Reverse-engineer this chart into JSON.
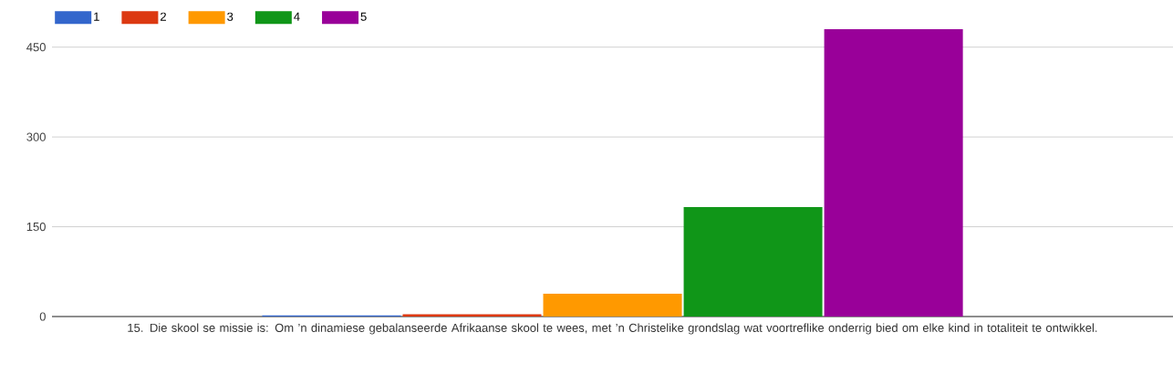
{
  "chart_data": {
    "type": "bar",
    "xlabel": "15. Die skool se missie is: Om ’n dinamiese gebalanseerde Afrikaanse skool te wees, met ’n Christelike grondslag wat voortreflike onderrig bied om elke kind in totaliteit te ontwikkel.",
    "categories": [
      null
    ],
    "series": [
      {
        "name": "1",
        "color": "#3366cc",
        "values": [
          2
        ]
      },
      {
        "name": "2",
        "color": "#dc3912",
        "values": [
          4
        ]
      },
      {
        "name": "3",
        "color": "#ff9900",
        "values": [
          38
        ]
      },
      {
        "name": "4",
        "color": "#109618",
        "values": [
          183
        ]
      },
      {
        "name": "5",
        "color": "#990099",
        "values": [
          480
        ]
      }
    ],
    "ylim": [
      0,
      480
    ],
    "yticks": [
      0,
      150,
      300,
      450
    ],
    "grid": "y",
    "legend": "top left",
    "tick_labels": "y"
  }
}
